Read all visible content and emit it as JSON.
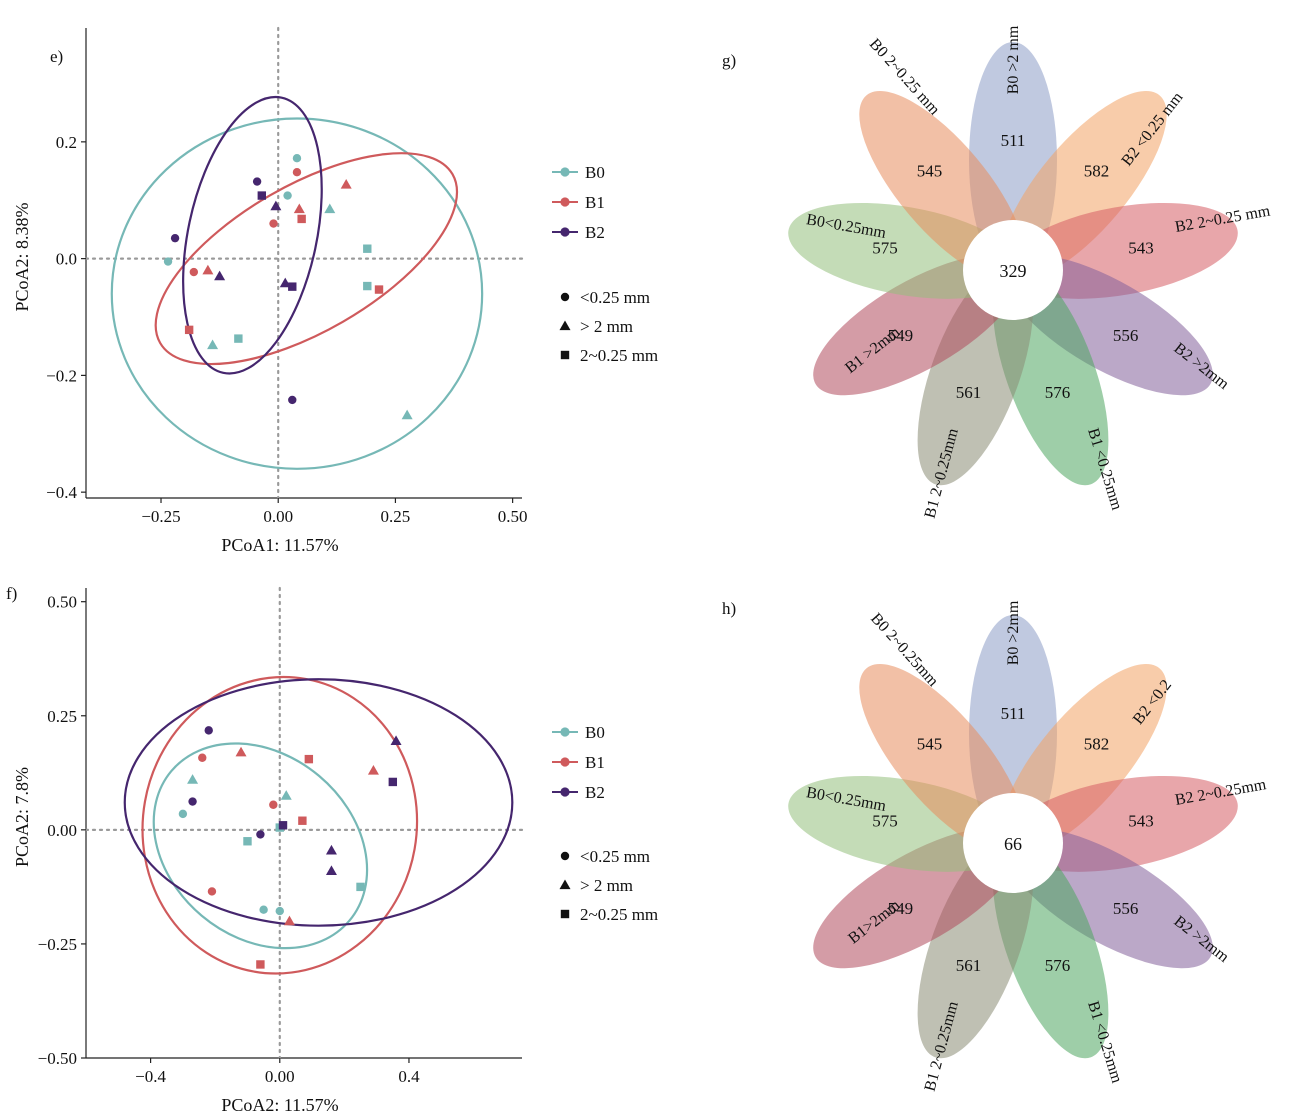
{
  "colors": {
    "B0": "#76b8b6",
    "B1": "#cf5a5c",
    "B2": "#45266e"
  },
  "shapes": {
    "lt025": "circle",
    "gt2": "triangle",
    "mid": "square"
  },
  "chart_data": [
    {
      "id": "e",
      "panel_label": "e)",
      "type": "scatter",
      "xlabel": "PCoA1: 11.57%",
      "ylabel": "PCoA2: 8.38%",
      "xlim": [
        -0.41,
        0.52
      ],
      "ylim": [
        -0.41,
        0.395
      ],
      "xticks": [
        -0.25,
        0.0,
        0.25,
        0.5
      ],
      "xtick_labels": [
        "−0.25",
        "0.00",
        "0.25",
        "0.50"
      ],
      "yticks": [
        -0.4,
        -0.2,
        0.0,
        0.2
      ],
      "ytick_labels": [
        "−0.4",
        "−0.2",
        "0.0",
        "0.2"
      ],
      "legend_groups": [
        "B0",
        "B1",
        "B2"
      ],
      "legend_shapes": [
        {
          "shape": "circle",
          "label": "<0.25 mm"
        },
        {
          "shape": "triangle",
          "label": "> 2 mm"
        },
        {
          "shape": "square",
          "label": "2~0.25 mm"
        }
      ],
      "ellipses": [
        {
          "group": "B0",
          "cx": 0.04,
          "cy": -0.06,
          "rx": 0.395,
          "ry": 0.3,
          "angle": 0
        },
        {
          "group": "B1",
          "cx": 0.06,
          "cy": 0.0,
          "rx": 0.36,
          "ry": 0.125,
          "angle": 30
        },
        {
          "group": "B2",
          "cx": -0.055,
          "cy": 0.04,
          "rx": 0.3,
          "ry": 0.11,
          "angle": 78
        }
      ],
      "points": [
        {
          "group": "B0",
          "shape": "circle",
          "x": 0.04,
          "y": 0.172
        },
        {
          "group": "B0",
          "shape": "circle",
          "x": 0.02,
          "y": 0.108
        },
        {
          "group": "B0",
          "shape": "circle",
          "x": -0.235,
          "y": -0.005
        },
        {
          "group": "B0",
          "shape": "triangle",
          "x": 0.11,
          "y": 0.085
        },
        {
          "group": "B0",
          "shape": "triangle",
          "x": -0.14,
          "y": -0.148
        },
        {
          "group": "B0",
          "shape": "triangle",
          "x": 0.275,
          "y": -0.268
        },
        {
          "group": "B0",
          "shape": "square",
          "x": 0.19,
          "y": 0.017
        },
        {
          "group": "B0",
          "shape": "square",
          "x": 0.19,
          "y": -0.047
        },
        {
          "group": "B0",
          "shape": "square",
          "x": -0.085,
          "y": -0.137
        },
        {
          "group": "B1",
          "shape": "circle",
          "x": 0.04,
          "y": 0.148
        },
        {
          "group": "B1",
          "shape": "circle",
          "x": -0.01,
          "y": 0.06
        },
        {
          "group": "B1",
          "shape": "circle",
          "x": -0.18,
          "y": -0.023
        },
        {
          "group": "B1",
          "shape": "triangle",
          "x": 0.145,
          "y": 0.127
        },
        {
          "group": "B1",
          "shape": "triangle",
          "x": 0.045,
          "y": 0.085
        },
        {
          "group": "B1",
          "shape": "triangle",
          "x": -0.15,
          "y": -0.02
        },
        {
          "group": "B1",
          "shape": "square",
          "x": 0.05,
          "y": 0.068
        },
        {
          "group": "B1",
          "shape": "square",
          "x": 0.215,
          "y": -0.053
        },
        {
          "group": "B1",
          "shape": "square",
          "x": -0.19,
          "y": -0.122
        },
        {
          "group": "B2",
          "shape": "circle",
          "x": -0.045,
          "y": 0.132
        },
        {
          "group": "B2",
          "shape": "circle",
          "x": -0.22,
          "y": 0.035
        },
        {
          "group": "B2",
          "shape": "circle",
          "x": 0.03,
          "y": -0.242
        },
        {
          "group": "B2",
          "shape": "triangle",
          "x": -0.005,
          "y": 0.09
        },
        {
          "group": "B2",
          "shape": "triangle",
          "x": -0.125,
          "y": -0.03
        },
        {
          "group": "B2",
          "shape": "triangle",
          "x": 0.015,
          "y": -0.042
        },
        {
          "group": "B2",
          "shape": "square",
          "x": -0.035,
          "y": 0.108
        },
        {
          "group": "B2",
          "shape": "square",
          "x": 0.03,
          "y": -0.048
        }
      ]
    },
    {
      "id": "f",
      "panel_label": "f)",
      "type": "scatter",
      "xlabel": "PCoA2: 11.57%",
      "ylabel": "PCoA2: 7.8%",
      "xlim": [
        -0.6,
        0.75
      ],
      "ylim": [
        -0.5,
        0.53
      ],
      "xticks": [
        -0.4,
        0.0,
        0.4
      ],
      "xtick_labels": [
        "−0.4",
        "0.00",
        "0.4"
      ],
      "yticks": [
        -0.5,
        -0.25,
        0.0,
        0.25,
        0.5
      ],
      "ytick_labels": [
        "−0.50",
        "−0.25",
        "0.00",
        "0.25",
        "0.50"
      ],
      "legend_groups": [
        "B0",
        "B1",
        "B2"
      ],
      "legend_shapes": [
        {
          "shape": "circle",
          "label": "<0.25 mm"
        },
        {
          "shape": "triangle",
          "label": "> 2 mm"
        },
        {
          "shape": "square",
          "label": "2~0.25 mm"
        }
      ],
      "ellipses": [
        {
          "group": "B0",
          "cx": -0.06,
          "cy": -0.035,
          "rx": 0.36,
          "ry": 0.2,
          "angle": -40
        },
        {
          "group": "B1",
          "cx": 0.0,
          "cy": 0.01,
          "rx": 0.46,
          "ry": 0.3,
          "angle": 80
        },
        {
          "group": "B2",
          "cx": 0.12,
          "cy": 0.06,
          "rx": 0.6,
          "ry": 0.27,
          "angle": 0
        }
      ],
      "points": [
        {
          "group": "B0",
          "shape": "circle",
          "x": -0.3,
          "y": 0.035
        },
        {
          "group": "B0",
          "shape": "circle",
          "x": -0.05,
          "y": -0.175
        },
        {
          "group": "B0",
          "shape": "circle",
          "x": 0.0,
          "y": -0.178
        },
        {
          "group": "B0",
          "shape": "triangle",
          "x": -0.27,
          "y": 0.11
        },
        {
          "group": "B0",
          "shape": "triangle",
          "x": 0.02,
          "y": 0.075
        },
        {
          "group": "B0",
          "shape": "square",
          "x": 0.0,
          "y": 0.005
        },
        {
          "group": "B0",
          "shape": "square",
          "x": -0.1,
          "y": -0.025
        },
        {
          "group": "B0",
          "shape": "square",
          "x": 0.25,
          "y": -0.125
        },
        {
          "group": "B1",
          "shape": "circle",
          "x": -0.24,
          "y": 0.158
        },
        {
          "group": "B1",
          "shape": "circle",
          "x": -0.02,
          "y": 0.055
        },
        {
          "group": "B1",
          "shape": "circle",
          "x": -0.21,
          "y": -0.135
        },
        {
          "group": "B1",
          "shape": "triangle",
          "x": -0.12,
          "y": 0.17
        },
        {
          "group": "B1",
          "shape": "triangle",
          "x": 0.29,
          "y": 0.13
        },
        {
          "group": "B1",
          "shape": "triangle",
          "x": 0.03,
          "y": -0.2
        },
        {
          "group": "B1",
          "shape": "square",
          "x": 0.09,
          "y": 0.155
        },
        {
          "group": "B1",
          "shape": "square",
          "x": 0.07,
          "y": 0.02
        },
        {
          "group": "B1",
          "shape": "square",
          "x": -0.06,
          "y": -0.295
        },
        {
          "group": "B2",
          "shape": "circle",
          "x": -0.22,
          "y": 0.218
        },
        {
          "group": "B2",
          "shape": "circle",
          "x": -0.27,
          "y": 0.062
        },
        {
          "group": "B2",
          "shape": "circle",
          "x": -0.06,
          "y": -0.01
        },
        {
          "group": "B2",
          "shape": "triangle",
          "x": 0.36,
          "y": 0.195
        },
        {
          "group": "B2",
          "shape": "triangle",
          "x": 0.16,
          "y": -0.045
        },
        {
          "group": "B2",
          "shape": "triangle",
          "x": 0.16,
          "y": -0.09
        },
        {
          "group": "B2",
          "shape": "square",
          "x": 0.35,
          "y": 0.105
        },
        {
          "group": "B2",
          "shape": "square",
          "x": 0.01,
          "y": 0.01
        }
      ]
    },
    {
      "id": "g",
      "panel_label": "g)",
      "type": "flower-venn",
      "center_value": "329",
      "petals": [
        {
          "label": "B0 >2 mm",
          "value": "511",
          "color": "#8c9cc6"
        },
        {
          "label": "B2 <0.25 mm",
          "value": "582",
          "color": "#f3a364"
        },
        {
          "label": "B2 2~0.25 mm",
          "value": "543",
          "color": "#d65c64"
        },
        {
          "label": "B2 >2mm",
          "value": "556",
          "color": "#84609a"
        },
        {
          "label": "B1 <0.25mm",
          "value": "576",
          "color": "#4ea560"
        },
        {
          "label": "B1 2~0.25mm",
          "value": "561",
          "color": "#8a8c74"
        },
        {
          "label": "B1 >2mm",
          "value": "549",
          "color": "#b04a5c"
        },
        {
          "label": "B0<0.25mm",
          "value": "575",
          "color": "#94bf7c"
        },
        {
          "label": "B0 2~0.25 mm",
          "value": "545",
          "color": "#e88c5c"
        }
      ]
    },
    {
      "id": "h",
      "panel_label": "h)",
      "type": "flower-venn",
      "center_value": "66",
      "petals": [
        {
          "label": "B0 >2mm",
          "value": "511",
          "color": "#8c9cc6"
        },
        {
          "label": "B2 <0.2",
          "value": "582",
          "color": "#f3a364"
        },
        {
          "label": "B2 2~0.25mm",
          "value": "543",
          "color": "#d65c64"
        },
        {
          "label": "B2 >2mm",
          "value": "556",
          "color": "#84609a"
        },
        {
          "label": "B1 <0.25mm",
          "value": "576",
          "color": "#4ea560"
        },
        {
          "label": "B1 2~0.25mm",
          "value": "561",
          "color": "#8a8c74"
        },
        {
          "label": "B1>2mm",
          "value": "549",
          "color": "#b04a5c"
        },
        {
          "label": "B0<0.25mm",
          "value": "575",
          "color": "#94bf7c"
        },
        {
          "label": "B0 2~0.25mm",
          "value": "545",
          "color": "#e88c5c"
        }
      ]
    }
  ]
}
